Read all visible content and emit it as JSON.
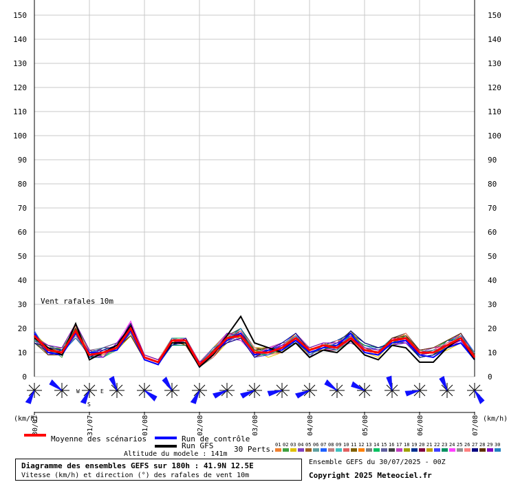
{
  "chart_data": {
    "type": "line",
    "title": "Vent rafales 10m",
    "y_unit": "(km/h)",
    "ylim": [
      0,
      150
    ],
    "y_ticks": [
      "0",
      "10",
      "20",
      "30",
      "40",
      "50",
      "60",
      "70",
      "80",
      "90",
      "100",
      "110",
      "120",
      "130",
      "140",
      "150"
    ],
    "x_date_labels": [
      "30/07",
      "31/07",
      "01/08",
      "02/08",
      "03/08",
      "04/08",
      "05/08",
      "06/08",
      "07/08"
    ],
    "x_step_hours": 6,
    "x_range_hours": [
      0,
      192
    ],
    "grid": true,
    "series": [
      {
        "name": "Moyenne des scénarios",
        "color": "#ff0000",
        "values": [
          17,
          11,
          10,
          19,
          9,
          10,
          12,
          20,
          8,
          6,
          15,
          15,
          5,
          10,
          16,
          17,
          10,
          10,
          12,
          16,
          11,
          13,
          12,
          16,
          11,
          10,
          15,
          16,
          10,
          10,
          13,
          16,
          8
        ]
      },
      {
        "name": "Run de contrôle",
        "color": "#0000ff",
        "values": [
          18,
          10,
          9,
          18,
          10,
          10,
          11,
          19,
          7,
          5,
          14,
          14,
          4,
          10,
          15,
          18,
          9,
          11,
          11,
          15,
          10,
          12,
          13,
          18,
          10,
          9,
          14,
          15,
          9,
          8,
          12,
          14,
          7
        ]
      },
      {
        "name": "Run GFS",
        "color": "#000000",
        "values": [
          16,
          12,
          9,
          22,
          7,
          10,
          13,
          21,
          8,
          6,
          14,
          14,
          4,
          9,
          17,
          25,
          14,
          12,
          10,
          14,
          8,
          11,
          10,
          15,
          9,
          7,
          13,
          12,
          6,
          6,
          12,
          16,
          7
        ]
      }
    ],
    "perturbations": {
      "label": "30 Perts.",
      "names": [
        "01",
        "02",
        "03",
        "04",
        "05",
        "06",
        "07",
        "08",
        "09",
        "10",
        "11",
        "12",
        "13",
        "14",
        "15",
        "16",
        "17",
        "18",
        "19",
        "20",
        "21",
        "22",
        "23",
        "24",
        "25",
        "26",
        "27",
        "28",
        "29",
        "30"
      ],
      "colors": [
        "#f08030",
        "#40a040",
        "#e0c000",
        "#8040c0",
        "#a06020",
        "#60a0a0",
        "#2060ff",
        "#c08080",
        "#40c0c0",
        "#e06060",
        "#806000",
        "#ff8000",
        "#808080",
        "#00c060",
        "#6060a0",
        "#404040",
        "#c040c0",
        "#a0a000",
        "#003090",
        "#800040",
        "#c0a000",
        "#4040ff",
        "#009060",
        "#ff40ff",
        "#909090",
        "#ff8080",
        "#000080",
        "#603000",
        "#8000c0",
        "#2080c0"
      ],
      "values": [
        [
          15,
          10,
          11,
          16,
          9,
          9,
          12,
          18,
          8,
          6,
          14,
          16,
          6,
          11,
          17,
          16,
          8,
          9,
          11,
          18,
          10,
          12,
          14,
          17,
          12,
          9,
          16,
          15,
          9,
          11,
          12,
          15,
          9
        ],
        [
          18,
          12,
          8,
          21,
          10,
          11,
          13,
          22,
          9,
          7,
          16,
          14,
          5,
          12,
          18,
          18,
          9,
          11,
          13,
          14,
          9,
          13,
          11,
          15,
          13,
          11,
          14,
          17,
          11,
          10,
          14,
          17,
          7
        ],
        [
          14,
          11,
          12,
          17,
          11,
          8,
          11,
          17,
          7,
          5,
          13,
          15,
          4,
          8,
          14,
          20,
          11,
          8,
          10,
          16,
          12,
          11,
          13,
          19,
          10,
          8,
          15,
          14,
          8,
          9,
          11,
          14,
          8
        ],
        [
          17,
          9,
          10,
          20,
          8,
          12,
          14,
          19,
          8,
          6,
          15,
          13,
          5,
          10,
          16,
          15,
          12,
          10,
          12,
          17,
          8,
          14,
          12,
          14,
          11,
          12,
          13,
          16,
          10,
          12,
          13,
          15,
          10
        ],
        [
          16,
          12,
          9,
          18,
          9,
          10,
          11,
          21,
          9,
          7,
          14,
          16,
          6,
          9,
          15,
          17,
          8,
          12,
          14,
          15,
          10,
          11,
          12,
          18,
          12,
          10,
          16,
          18,
          9,
          11,
          15,
          18,
          8
        ],
        [
          19,
          10,
          11,
          19,
          10,
          9,
          12,
          20,
          7,
          5,
          16,
          15,
          4,
          11,
          17,
          19,
          10,
          9,
          11,
          14,
          11,
          13,
          15,
          16,
          10,
          9,
          14,
          15,
          10,
          10,
          12,
          16,
          9
        ],
        [
          15,
          11,
          10,
          22,
          11,
          11,
          13,
          18,
          8,
          6,
          13,
          14,
          5,
          10,
          14,
          16,
          9,
          11,
          13,
          18,
          9,
          12,
          11,
          17,
          13,
          11,
          15,
          16,
          8,
          9,
          14,
          17,
          7
        ],
        [
          17,
          13,
          9,
          17,
          8,
          10,
          12,
          23,
          9,
          7,
          15,
          16,
          6,
          12,
          18,
          18,
          11,
          10,
          12,
          16,
          10,
          11,
          14,
          15,
          11,
          10,
          13,
          17,
          11,
          12,
          13,
          15,
          8
        ],
        [
          16,
          10,
          12,
          20,
          9,
          8,
          11,
          19,
          8,
          6,
          14,
          15,
          5,
          9,
          16,
          17,
          10,
          12,
          11,
          15,
          12,
          14,
          12,
          18,
          12,
          11,
          16,
          14,
          9,
          10,
          12,
          16,
          9
        ],
        [
          18,
          12,
          10,
          18,
          10,
          12,
          14,
          21,
          7,
          5,
          16,
          13,
          4,
          11,
          15,
          20,
          9,
          9,
          13,
          17,
          9,
          12,
          13,
          16,
          10,
          9,
          15,
          18,
          10,
          11,
          15,
          17,
          10
        ],
        [
          14,
          9,
          11,
          21,
          8,
          9,
          12,
          17,
          9,
          7,
          13,
          16,
          6,
          10,
          17,
          16,
          12,
          11,
          10,
          14,
          11,
          13,
          11,
          19,
          14,
          12,
          14,
          15,
          8,
          9,
          13,
          14,
          8
        ],
        [
          17,
          11,
          9,
          19,
          11,
          11,
          13,
          22,
          8,
          6,
          15,
          14,
          5,
          12,
          14,
          18,
          8,
          10,
          12,
          18,
          10,
          11,
          14,
          15,
          11,
          10,
          16,
          16,
          11,
          12,
          12,
          18,
          9
        ],
        [
          16,
          12,
          12,
          16,
          9,
          10,
          11,
          20,
          7,
          5,
          14,
          15,
          4,
          8,
          16,
          19,
          11,
          12,
          11,
          16,
          12,
          14,
          12,
          17,
          12,
          11,
          13,
          17,
          9,
          10,
          14,
          15,
          7
        ],
        [
          19,
          10,
          10,
          22,
          10,
          8,
          12,
          18,
          9,
          7,
          16,
          16,
          6,
          11,
          18,
          15,
          9,
          9,
          13,
          15,
          9,
          12,
          13,
          18,
          10,
          9,
          15,
          14,
          10,
          11,
          15,
          16,
          10
        ],
        [
          15,
          13,
          11,
          18,
          8,
          12,
          14,
          21,
          8,
          6,
          13,
          14,
          5,
          10,
          15,
          17,
          10,
          11,
          12,
          17,
          11,
          13,
          11,
          16,
          13,
          12,
          14,
          16,
          8,
          9,
          12,
          17,
          8
        ],
        [
          17,
          11,
          9,
          20,
          9,
          9,
          13,
          19,
          7,
          5,
          15,
          15,
          4,
          9,
          17,
          20,
          12,
          10,
          10,
          14,
          10,
          11,
          14,
          19,
          11,
          10,
          16,
          18,
          11,
          12,
          13,
          14,
          9
        ],
        [
          16,
          9,
          12,
          17,
          11,
          11,
          11,
          23,
          9,
          7,
          14,
          16,
          6,
          12,
          14,
          16,
          8,
          12,
          14,
          18,
          12,
          14,
          12,
          15,
          12,
          11,
          13,
          15,
          9,
          10,
          14,
          18,
          7
        ],
        [
          18,
          12,
          10,
          21,
          10,
          10,
          12,
          18,
          8,
          6,
          16,
          13,
          5,
          10,
          16,
          18,
          11,
          9,
          11,
          16,
          9,
          12,
          13,
          17,
          10,
          9,
          15,
          17,
          10,
          11,
          12,
          16,
          10
        ],
        [
          14,
          10,
          11,
          19,
          8,
          8,
          14,
          20,
          7,
          5,
          13,
          15,
          4,
          11,
          18,
          17,
          9,
          11,
          13,
          15,
          11,
          13,
          15,
          18,
          14,
          12,
          14,
          14,
          8,
          9,
          15,
          15,
          8
        ],
        [
          17,
          12,
          9,
          18,
          9,
          12,
          12,
          22,
          9,
          7,
          15,
          14,
          6,
          8,
          15,
          19,
          10,
          10,
          12,
          17,
          10,
          11,
          11,
          16,
          11,
          10,
          16,
          16,
          11,
          12,
          13,
          17,
          9
        ],
        [
          16,
          11,
          12,
          22,
          11,
          9,
          11,
          17,
          8,
          6,
          14,
          16,
          5,
          12,
          17,
          16,
          12,
          12,
          10,
          14,
          12,
          14,
          12,
          19,
          12,
          11,
          13,
          18,
          9,
          10,
          12,
          14,
          7
        ],
        [
          19,
          9,
          10,
          16,
          10,
          11,
          13,
          21,
          7,
          5,
          16,
          15,
          4,
          10,
          14,
          18,
          8,
          9,
          14,
          18,
          9,
          12,
          14,
          15,
          10,
          9,
          15,
          15,
          10,
          11,
          14,
          18,
          10
        ],
        [
          15,
          13,
          11,
          20,
          8,
          10,
          12,
          19,
          9,
          7,
          13,
          13,
          6,
          9,
          16,
          20,
          11,
          11,
          11,
          16,
          11,
          13,
          13,
          17,
          13,
          12,
          14,
          17,
          8,
          9,
          15,
          16,
          8
        ],
        [
          17,
          10,
          9,
          19,
          9,
          8,
          14,
          23,
          8,
          6,
          15,
          16,
          5,
          11,
          18,
          15,
          9,
          12,
          13,
          15,
          10,
          11,
          12,
          18,
          11,
          10,
          16,
          14,
          11,
          12,
          12,
          15,
          9
        ],
        [
          16,
          12,
          12,
          17,
          11,
          12,
          11,
          18,
          7,
          5,
          14,
          14,
          4,
          12,
          15,
          17,
          10,
          10,
          12,
          17,
          12,
          14,
          11,
          16,
          12,
          11,
          13,
          16,
          9,
          10,
          13,
          17,
          7
        ],
        [
          18,
          11,
          10,
          21,
          10,
          9,
          12,
          20,
          9,
          7,
          16,
          15,
          6,
          8,
          17,
          19,
          12,
          9,
          10,
          14,
          9,
          12,
          15,
          15,
          10,
          9,
          15,
          18,
          10,
          11,
          14,
          16,
          10
        ],
        [
          14,
          12,
          11,
          18,
          8,
          11,
          13,
          22,
          8,
          6,
          13,
          16,
          5,
          10,
          14,
          16,
          8,
          11,
          14,
          18,
          11,
          13,
          12,
          19,
          14,
          12,
          14,
          15,
          8,
          9,
          12,
          14,
          8
        ],
        [
          17,
          9,
          9,
          20,
          9,
          10,
          12,
          17,
          7,
          5,
          15,
          13,
          4,
          11,
          16,
          18,
          11,
          12,
          11,
          16,
          10,
          11,
          13,
          16,
          11,
          10,
          16,
          17,
          11,
          12,
          15,
          18,
          9
        ],
        [
          16,
          13,
          12,
          22,
          11,
          8,
          14,
          21,
          9,
          7,
          14,
          15,
          6,
          9,
          18,
          17,
          9,
          10,
          13,
          15,
          12,
          14,
          14,
          17,
          12,
          11,
          13,
          14,
          9,
          10,
          13,
          15,
          7
        ],
        [
          18,
          10,
          10,
          16,
          10,
          12,
          11,
          19,
          8,
          6,
          16,
          14,
          5,
          12,
          15,
          20,
          10,
          9,
          12,
          17,
          9,
          12,
          11,
          18,
          10,
          9,
          15,
          16,
          10,
          11,
          12,
          17,
          10
        ]
      ]
    },
    "directions_deg": [
      200,
      300,
      200,
      330,
      120,
      320,
      200,
      240,
      240,
      250,
      240,
      300,
      290,
      340,
      250,
      330,
      140
    ],
    "legend_labels": {
      "mean": "Moyenne des scénarios",
      "control": "Run de contrôle",
      "gfs": "Run GFS"
    }
  },
  "compass": {
    "w": "W",
    "e": "E",
    "s": "S"
  },
  "altitude_label": "Altitude du modele : 141m",
  "info": {
    "title": "Diagramme des ensembles GEFS sur 180h : 41.9N 12.5E",
    "subtitle": "Vitesse (km/h) et direction (°) des rafales de vent 10m"
  },
  "ensemble_label": "Ensemble GEFS du 30/07/2025 - 00Z",
  "copyright": "Copyright 2025 Meteociel.fr"
}
